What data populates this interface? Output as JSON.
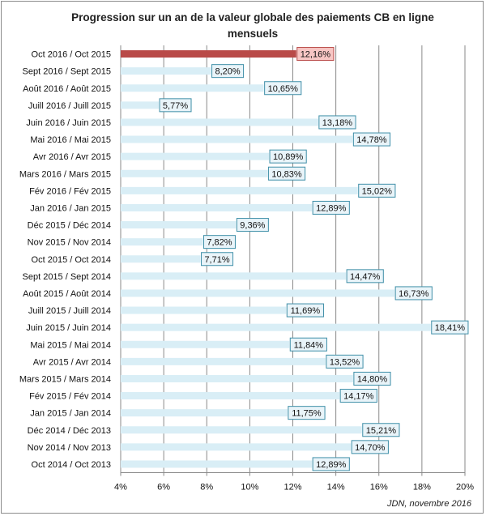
{
  "chart_data": {
    "type": "bar",
    "orientation": "horizontal",
    "title": "Progression sur un an de la valeur globale des paiements CB en ligne mensuels",
    "xlabel": "",
    "ylabel": "",
    "xlim": [
      4,
      20
    ],
    "x_ticks": [
      "4%",
      "6%",
      "8%",
      "10%",
      "12%",
      "14%",
      "16%",
      "18%",
      "20%"
    ],
    "grid": "vertical",
    "legend": "none",
    "categories": [
      "Oct 2016 / Oct 2015",
      "Sept 2016 / Sept 2015",
      "Août 2016 / Août 2015",
      "Juill 2016 / Juill 2015",
      "Juin 2016 / Juin 2015",
      "Mai 2016 / Mai 2015",
      "Avr 2016 / Avr 2015",
      "Mars 2016 / Mars 2015",
      "Fév 2016 / Fév 2015",
      "Jan 2016 / Jan 2015",
      "Déc 2015 / Déc 2014",
      "Nov 2015 / Nov 2014",
      "Oct 2015 / Oct 2014",
      "Sept 2015 / Sept 2014",
      "Août 2015 / Août 2014",
      "Juill 2015 / Juill 2014",
      "Juin 2015 / Juin 2014",
      "Mai 2015 / Mai 2014",
      "Avr 2015 / Avr 2014",
      "Mars 2015 / Mars 2014",
      "Fév 2015 / Fév 2014",
      "Jan 2015 / Jan 2014",
      "Déc 2014 / Déc 2013",
      "Nov 2014 / Nov 2013",
      "Oct 2014 / Oct 2013"
    ],
    "values": [
      12.16,
      8.2,
      10.65,
      5.77,
      13.18,
      14.78,
      10.89,
      10.83,
      15.02,
      12.89,
      9.36,
      7.82,
      7.71,
      14.47,
      16.73,
      11.69,
      18.41,
      11.84,
      13.52,
      14.8,
      14.17,
      11.75,
      15.21,
      14.7,
      12.89
    ],
    "data_labels": [
      "12,16%",
      "8,20%",
      "10,65%",
      "5,77%",
      "13,18%",
      "14,78%",
      "10,89%",
      "10,83%",
      "15,02%",
      "12,89%",
      "9,36%",
      "7,82%",
      "7,71%",
      "14,47%",
      "16,73%",
      "11,69%",
      "18,41%",
      "11,84%",
      "13,52%",
      "14,80%",
      "14,17%",
      "11,75%",
      "15,21%",
      "14,70%",
      "12,89%"
    ],
    "highlight_index": 0,
    "colors": {
      "bar": "#d9eef6",
      "highlight_bar": "#b94a48",
      "label_fill": "#e9f4f9",
      "label_border": "#3f8fa8",
      "highlight_label_fill": "#f7c6c4",
      "highlight_label_border": "#b94a48",
      "grid": "#8a8a8a"
    }
  },
  "source_note": "JDN, novembre 2016"
}
